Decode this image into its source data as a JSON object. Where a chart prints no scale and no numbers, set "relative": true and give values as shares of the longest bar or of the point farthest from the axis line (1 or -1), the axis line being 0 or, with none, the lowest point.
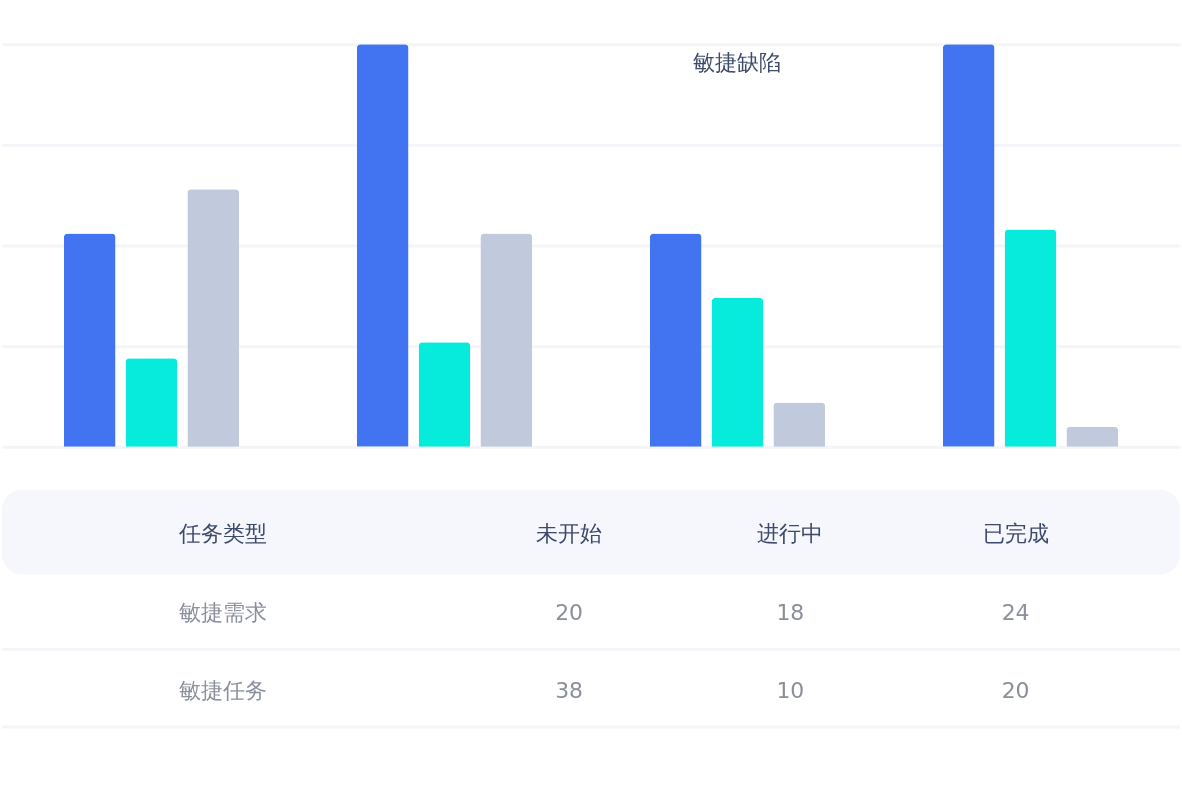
{
  "chart_data": [
    {
      "type": "bar",
      "categories": [
        null,
        null,
        null,
        null
      ],
      "series": [
        {
          "color": "#4274f2",
          "values": [
            0.53,
            1,
            0.53,
            1
          ]
        },
        {
          "color": "#07ebdd",
          "values": [
            0.22,
            0.26,
            0.37,
            0.54
          ]
        },
        {
          "color": "#c1c9dc",
          "values": [
            0.64,
            0.53,
            0.11,
            0.05
          ]
        }
      ],
      "relative": true,
      "grid": "y",
      "annotations": [
        "敏捷缺陷"
      ]
    },
    {
      "type": "other",
      "annotations": [
        "任务类型",
        "未开始",
        "进行中",
        "已完成",
        "敏捷需求",
        "20",
        "18",
        "24",
        "敏捷任务",
        "38",
        "10",
        "20"
      ]
    }
  ]
}
